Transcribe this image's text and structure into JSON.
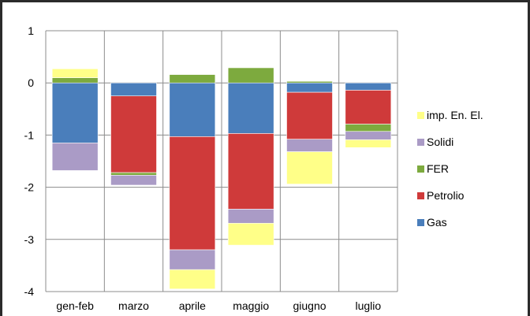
{
  "chart_data": {
    "type": "bar",
    "stacked": true,
    "categories": [
      "gen-feb",
      "marzo",
      "aprile",
      "maggio",
      "giugno",
      "luglio"
    ],
    "ylim": [
      -4,
      1
    ],
    "yticks": [
      "1",
      "0",
      "-1",
      "-2",
      "-3",
      "-4"
    ],
    "grid": true,
    "legend_position": "right",
    "series": [
      {
        "name": "Gas",
        "color": "#4a7ebb",
        "values": [
          -1.15,
          -0.25,
          -1.03,
          -0.97,
          -0.18,
          -0.14
        ]
      },
      {
        "name": "Petrolio",
        "color": "#cf3a3a",
        "values": [
          0,
          -1.47,
          -2.17,
          -1.45,
          -0.9,
          -0.65
        ]
      },
      {
        "name": "FER",
        "color": "#7daa3e",
        "values": [
          0.1,
          -0.05,
          0.16,
          0.29,
          0.03,
          -0.14
        ]
      },
      {
        "name": "Solidi",
        "color": "#aa9bc6",
        "values": [
          -0.53,
          -0.19,
          -0.38,
          -0.27,
          -0.24,
          -0.16
        ]
      },
      {
        "name": "imp. En. El.",
        "color": "#ffff88",
        "values": [
          0.17,
          0,
          -0.37,
          -0.42,
          -0.62,
          -0.15
        ]
      }
    ],
    "legend_order": [
      "imp. En. El.",
      "Solidi",
      "FER",
      "Petrolio",
      "Gas"
    ]
  }
}
